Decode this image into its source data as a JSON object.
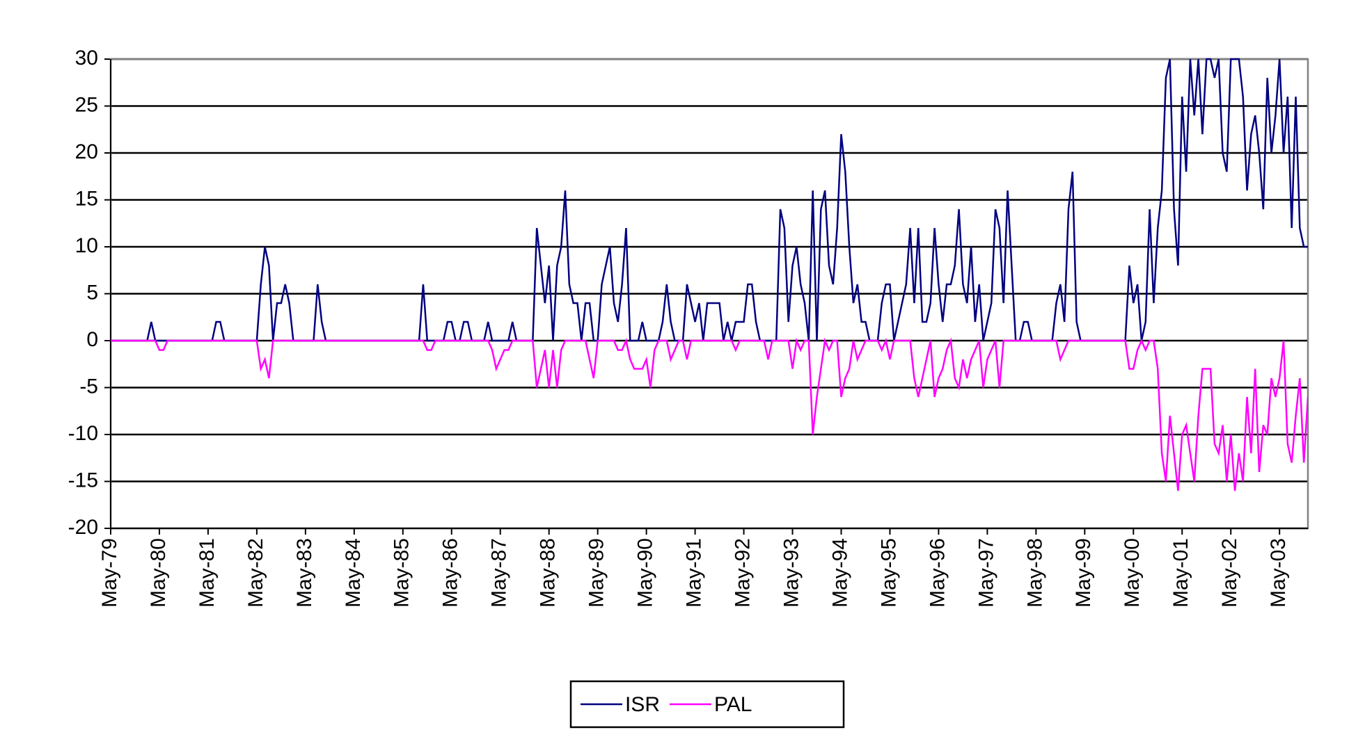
{
  "chart_data": {
    "type": "line",
    "categories": [
      "May-79",
      null,
      null,
      null,
      null,
      null,
      null,
      null,
      null,
      null,
      null,
      null,
      "May-80",
      null,
      null,
      null,
      null,
      null,
      null,
      null,
      null,
      null,
      null,
      null,
      "May-81",
      null,
      null,
      null,
      null,
      null,
      null,
      null,
      null,
      null,
      null,
      null,
      "May-82",
      null,
      null,
      null,
      null,
      null,
      null,
      null,
      null,
      null,
      null,
      null,
      "May-83",
      null,
      null,
      null,
      null,
      null,
      null,
      null,
      null,
      null,
      null,
      null,
      "May-84",
      null,
      null,
      null,
      null,
      null,
      null,
      null,
      null,
      null,
      null,
      null,
      "May-85",
      null,
      null,
      null,
      null,
      null,
      null,
      null,
      null,
      null,
      null,
      null,
      "May-86",
      null,
      null,
      null,
      null,
      null,
      null,
      null,
      null,
      null,
      null,
      null,
      "May-87",
      null,
      null,
      null,
      null,
      null,
      null,
      null,
      null,
      null,
      null,
      null,
      "May-88",
      null,
      null,
      null,
      null,
      null,
      null,
      null,
      null,
      null,
      null,
      null,
      "May-89",
      null,
      null,
      null,
      null,
      null,
      null,
      null,
      null,
      null,
      null,
      null,
      "May-90",
      null,
      null,
      null,
      null,
      null,
      null,
      null,
      null,
      null,
      null,
      null,
      "May-91",
      null,
      null,
      null,
      null,
      null,
      null,
      null,
      null,
      null,
      null,
      null,
      "May-92",
      null,
      null,
      null,
      null,
      null,
      null,
      null,
      null,
      null,
      null,
      null,
      "May-93",
      null,
      null,
      null,
      null,
      null,
      null,
      null,
      null,
      null,
      null,
      null,
      "May-94",
      null,
      null,
      null,
      null,
      null,
      null,
      null,
      null,
      null,
      null,
      null,
      "May-95",
      null,
      null,
      null,
      null,
      null,
      null,
      null,
      null,
      null,
      null,
      null,
      "May-96",
      null,
      null,
      null,
      null,
      null,
      null,
      null,
      null,
      null,
      null,
      null,
      "May-97",
      null,
      null,
      null,
      null,
      null,
      null,
      null,
      null,
      null,
      null,
      null,
      "May-98",
      null,
      null,
      null,
      null,
      null,
      null,
      null,
      null,
      null,
      null,
      null,
      "May-99",
      null,
      null,
      null,
      null,
      null,
      null,
      null,
      null,
      null,
      null,
      null,
      "May-00",
      null,
      null,
      null,
      null,
      null,
      null,
      null,
      null,
      null,
      null,
      null,
      "May-01",
      null,
      null,
      null,
      null,
      null,
      null,
      null,
      null,
      null,
      null,
      null,
      "May-02",
      null,
      null,
      null,
      null,
      null,
      null,
      null,
      null,
      null,
      null,
      null,
      "May-03",
      null,
      null,
      null,
      null,
      null,
      null,
      null
    ],
    "series": [
      {
        "name": "ISR",
        "color": "#000080",
        "values": [
          0,
          0,
          0,
          0,
          0,
          0,
          0,
          0,
          0,
          0,
          2,
          0,
          0,
          0,
          0,
          0,
          0,
          0,
          0,
          0,
          0,
          0,
          0,
          0,
          0,
          0,
          2,
          2,
          0,
          0,
          0,
          0,
          0,
          0,
          0,
          0,
          0,
          6,
          10,
          8,
          0,
          4,
          4,
          6,
          4,
          0,
          0,
          0,
          0,
          0,
          0,
          6,
          2,
          0,
          0,
          0,
          0,
          0,
          0,
          0,
          0,
          0,
          0,
          0,
          0,
          0,
          0,
          0,
          0,
          0,
          0,
          0,
          0,
          0,
          0,
          0,
          0,
          6,
          0,
          0,
          0,
          0,
          0,
          2,
          2,
          0,
          0,
          2,
          2,
          0,
          0,
          0,
          0,
          2,
          0,
          0,
          0,
          0,
          0,
          2,
          0,
          0,
          0,
          0,
          0,
          12,
          8,
          4,
          8,
          0,
          8,
          10,
          16,
          6,
          4,
          4,
          0,
          4,
          4,
          0,
          0,
          6,
          8,
          10,
          4,
          2,
          6,
          12,
          0,
          0,
          0,
          2,
          0,
          0,
          0,
          0,
          2,
          6,
          2,
          0,
          0,
          0,
          6,
          4,
          2,
          4,
          0,
          4,
          4,
          4,
          4,
          0,
          2,
          0,
          2,
          2,
          2,
          6,
          6,
          2,
          0,
          0,
          0,
          0,
          0,
          14,
          12,
          2,
          8,
          10,
          6,
          4,
          0,
          16,
          0,
          14,
          16,
          8,
          6,
          12,
          22,
          18,
          10,
          4,
          6,
          2,
          2,
          0,
          0,
          0,
          4,
          6,
          6,
          0,
          2,
          4,
          6,
          12,
          4,
          12,
          2,
          2,
          4,
          12,
          6,
          2,
          6,
          6,
          8,
          14,
          6,
          4,
          10,
          2,
          6,
          0,
          2,
          4,
          14,
          12,
          4,
          16,
          8,
          0,
          0,
          2,
          2,
          0,
          0,
          0,
          0,
          0,
          0,
          4,
          6,
          2,
          14,
          18,
          2,
          0,
          0,
          0,
          0,
          0,
          0,
          0,
          0,
          0,
          0,
          0,
          0,
          8,
          4,
          6,
          0,
          2,
          14,
          4,
          12,
          16,
          28,
          30,
          14,
          8,
          26,
          18,
          30,
          24,
          30,
          22,
          30,
          30,
          28,
          30,
          20,
          18,
          30,
          30,
          30,
          26,
          16,
          22,
          24,
          20,
          14,
          28,
          20,
          24,
          30,
          20,
          26,
          12,
          26,
          12,
          10,
          10
        ]
      },
      {
        "name": "PAL",
        "color": "#ff00ff",
        "values": [
          0,
          0,
          0,
          0,
          0,
          0,
          0,
          0,
          0,
          0,
          0,
          0,
          -1,
          -1,
          0,
          0,
          0,
          0,
          0,
          0,
          0,
          0,
          0,
          0,
          0,
          0,
          0,
          0,
          0,
          0,
          0,
          0,
          0,
          0,
          0,
          0,
          0,
          -3,
          -2,
          -4,
          0,
          0,
          0,
          0,
          0,
          0,
          0,
          0,
          0,
          0,
          0,
          0,
          0,
          0,
          0,
          0,
          0,
          0,
          0,
          0,
          0,
          0,
          0,
          0,
          0,
          0,
          0,
          0,
          0,
          0,
          0,
          0,
          0,
          0,
          0,
          0,
          0,
          0,
          -1,
          -1,
          0,
          0,
          0,
          0,
          0,
          0,
          0,
          0,
          0,
          0,
          0,
          0,
          0,
          0,
          -1,
          -3,
          -2,
          -1,
          -1,
          0,
          0,
          0,
          0,
          0,
          0,
          -5,
          -3,
          -1,
          -5,
          -1,
          -5,
          -1,
          0,
          0,
          0,
          0,
          0,
          0,
          -2,
          -4,
          0,
          0,
          0,
          0,
          0,
          -1,
          -1,
          0,
          -2,
          -3,
          -3,
          -3,
          -2,
          -5,
          -1,
          0,
          0,
          0,
          -2,
          -1,
          0,
          0,
          -2,
          0,
          0,
          0,
          0,
          0,
          0,
          0,
          0,
          0,
          0,
          0,
          -1,
          0,
          0,
          0,
          0,
          0,
          0,
          0,
          -2,
          0,
          0,
          0,
          0,
          0,
          -3,
          0,
          -1,
          0,
          0,
          -10,
          -6,
          -3,
          0,
          -1,
          0,
          0,
          -6,
          -4,
          -3,
          0,
          -2,
          -1,
          0,
          0,
          0,
          0,
          -1,
          0,
          -2,
          0,
          0,
          0,
          0,
          0,
          -4,
          -6,
          -4,
          -2,
          0,
          -6,
          -4,
          -3,
          -1,
          0,
          -4,
          -5,
          -2,
          -4,
          -2,
          -1,
          0,
          -5,
          -2,
          -1,
          0,
          -5,
          0,
          0,
          0,
          0,
          0,
          0,
          0,
          0,
          0,
          0,
          0,
          0,
          0,
          0,
          -2,
          -1,
          0,
          0,
          0,
          0,
          0,
          0,
          0,
          0,
          0,
          0,
          0,
          0,
          0,
          0,
          0,
          -3,
          -3,
          -1,
          0,
          -1,
          0,
          0,
          -3,
          -12,
          -15,
          -8,
          -12,
          -16,
          -10,
          -9,
          -12,
          -15,
          -8,
          -3,
          -3,
          -3,
          -11,
          -12,
          -9,
          -15,
          -10,
          -16,
          -12,
          -15,
          -6,
          -12,
          -3,
          -14,
          -9,
          -10,
          -4,
          -6,
          -4,
          0,
          -11,
          -13,
          -8,
          -4,
          -13,
          -6
        ]
      }
    ],
    "ylim": [
      -20,
      30
    ],
    "yticks": [
      -20,
      -15,
      -10,
      -5,
      0,
      5,
      10,
      15,
      20,
      25,
      30
    ],
    "grid": true,
    "legend": "bottom"
  }
}
